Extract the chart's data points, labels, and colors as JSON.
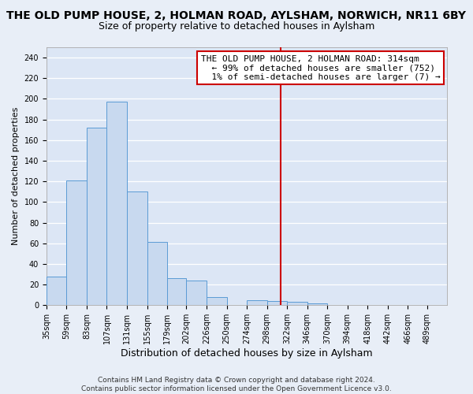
{
  "title": "THE OLD PUMP HOUSE, 2, HOLMAN ROAD, AYLSHAM, NORWICH, NR11 6BY",
  "subtitle": "Size of property relative to detached houses in Aylsham",
  "xlabel": "Distribution of detached houses by size in Aylsham",
  "ylabel": "Number of detached properties",
  "bin_edges": [
    35,
    59,
    83,
    107,
    131,
    155,
    179,
    202,
    226,
    250,
    274,
    298,
    322,
    346,
    370,
    394,
    418,
    442,
    466,
    489,
    513
  ],
  "bar_heights": [
    28,
    121,
    172,
    197,
    110,
    61,
    26,
    24,
    8,
    0,
    5,
    4,
    3,
    2,
    0,
    0,
    0,
    0,
    0,
    0
  ],
  "bar_color": "#c8d9ef",
  "bar_edge_color": "#5b9bd5",
  "vline_x": 314,
  "vline_color": "#cc0000",
  "ylim": [
    0,
    250
  ],
  "yticks": [
    0,
    20,
    40,
    60,
    80,
    100,
    120,
    140,
    160,
    180,
    200,
    220,
    240
  ],
  "annotation_title": "THE OLD PUMP HOUSE, 2 HOLMAN ROAD: 314sqm",
  "annotation_line1": "← 99% of detached houses are smaller (752)",
  "annotation_line2": "1% of semi-detached houses are larger (7) →",
  "annotation_box_color": "#ffffff",
  "annotation_box_edge": "#cc0000",
  "footer_line1": "Contains HM Land Registry data © Crown copyright and database right 2024.",
  "footer_line2": "Contains public sector information licensed under the Open Government Licence v3.0.",
  "background_color": "#e8eef7",
  "plot_bg_color": "#dce6f5",
  "grid_color": "#ffffff",
  "title_fontsize": 10,
  "subtitle_fontsize": 9,
  "xlabel_fontsize": 9,
  "ylabel_fontsize": 8,
  "tick_fontsize": 7,
  "annotation_fontsize": 8,
  "footer_fontsize": 6.5
}
